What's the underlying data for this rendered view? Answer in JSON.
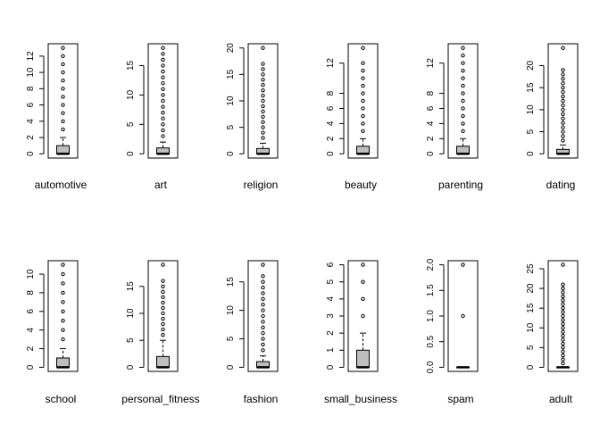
{
  "chart_data": [
    {
      "type": "box",
      "xlabel": "automotive",
      "ylabel": "",
      "ylim": [
        0,
        13
      ],
      "yticks": [
        0,
        2,
        4,
        6,
        8,
        10,
        12
      ],
      "box": {
        "min": 0,
        "q1": 0,
        "median": 0,
        "q3": 1,
        "whisker_high": 2
      },
      "outliers": [
        3,
        4,
        5,
        6,
        7,
        8,
        9,
        10,
        11,
        12,
        13
      ]
    },
    {
      "type": "box",
      "xlabel": "art",
      "ylabel": "",
      "ylim": [
        0,
        18
      ],
      "yticks": [
        0,
        5,
        10,
        15
      ],
      "box": {
        "min": 0,
        "q1": 0,
        "median": 0,
        "q3": 1,
        "whisker_high": 2
      },
      "outliers": [
        3,
        4,
        5,
        6,
        7,
        8,
        9,
        10,
        11,
        12,
        13,
        14,
        15,
        16,
        17,
        18
      ]
    },
    {
      "type": "box",
      "xlabel": "religion",
      "ylabel": "",
      "ylim": [
        0,
        20
      ],
      "yticks": [
        0,
        5,
        10,
        15,
        20
      ],
      "box": {
        "min": 0,
        "q1": 0,
        "median": 0,
        "q3": 1,
        "whisker_high": 2
      },
      "outliers": [
        3,
        4,
        5,
        6,
        7,
        8,
        9,
        10,
        11,
        12,
        13,
        14,
        15,
        16,
        17,
        20
      ]
    },
    {
      "type": "box",
      "xlabel": "beauty",
      "ylabel": "",
      "ylim": [
        0,
        14
      ],
      "yticks": [
        0,
        2,
        4,
        6,
        8,
        12
      ],
      "box": {
        "min": 0,
        "q1": 0,
        "median": 0,
        "q3": 1,
        "whisker_high": 2
      },
      "outliers": [
        3,
        4,
        5,
        6,
        7,
        8,
        9,
        10,
        11,
        12,
        14
      ]
    },
    {
      "type": "box",
      "xlabel": "parenting",
      "ylabel": "",
      "ylim": [
        0,
        14
      ],
      "yticks": [
        0,
        2,
        4,
        6,
        8,
        12
      ],
      "box": {
        "min": 0,
        "q1": 0,
        "median": 0,
        "q3": 1,
        "whisker_high": 2
      },
      "outliers": [
        3,
        4,
        5,
        6,
        7,
        8,
        9,
        10,
        11,
        12,
        13,
        14
      ]
    },
    {
      "type": "box",
      "xlabel": "dating",
      "ylabel": "",
      "ylim": [
        0,
        24
      ],
      "yticks": [
        0,
        5,
        10,
        15,
        20
      ],
      "box": {
        "min": 0,
        "q1": 0,
        "median": 0,
        "q3": 1,
        "whisker_high": 2
      },
      "outliers": [
        3,
        4,
        5,
        6,
        7,
        8,
        9,
        10,
        11,
        12,
        13,
        14,
        15,
        16,
        17,
        18,
        19,
        24
      ]
    },
    {
      "type": "box",
      "xlabel": "school",
      "ylabel": "",
      "ylim": [
        0,
        11
      ],
      "yticks": [
        0,
        2,
        4,
        6,
        8,
        10
      ],
      "box": {
        "min": 0,
        "q1": 0,
        "median": 0,
        "q3": 1,
        "whisker_high": 2
      },
      "outliers": [
        3,
        4,
        5,
        6,
        7,
        8,
        9,
        10,
        11
      ]
    },
    {
      "type": "box",
      "xlabel": "personal_fitness",
      "ylabel": "",
      "ylim": [
        0,
        19
      ],
      "yticks": [
        0,
        5,
        10,
        15
      ],
      "box": {
        "min": 0,
        "q1": 0,
        "median": 0,
        "q3": 2,
        "whisker_high": 5
      },
      "outliers": [
        6,
        7,
        8,
        9,
        10,
        11,
        12,
        13,
        14,
        15,
        16,
        19
      ]
    },
    {
      "type": "box",
      "xlabel": "fashion",
      "ylabel": "",
      "ylim": [
        0,
        18
      ],
      "yticks": [
        0,
        5,
        10,
        15
      ],
      "box": {
        "min": 0,
        "q1": 0,
        "median": 0,
        "q3": 1,
        "whisker_high": 2
      },
      "outliers": [
        3,
        4,
        5,
        6,
        7,
        8,
        9,
        10,
        11,
        12,
        13,
        14,
        15,
        16,
        18
      ]
    },
    {
      "type": "box",
      "xlabel": "small_business",
      "ylabel": "",
      "ylim": [
        0,
        6
      ],
      "yticks": [
        0,
        1,
        2,
        3,
        4,
        5,
        6
      ],
      "box": {
        "min": 0,
        "q1": 0,
        "median": 0,
        "q3": 1,
        "whisker_high": 2
      },
      "outliers": [
        3,
        4,
        5,
        6
      ]
    },
    {
      "type": "box",
      "xlabel": "spam",
      "ylabel": "",
      "ylim": [
        0,
        2
      ],
      "yticks": [
        0.0,
        0.5,
        1.0,
        1.5,
        2.0
      ],
      "ytick_labels": [
        "0.0",
        "0.5",
        "1.0",
        "1.5",
        "2.0"
      ],
      "box": {
        "min": 0,
        "q1": 0,
        "median": 0,
        "q3": 0,
        "whisker_high": 0
      },
      "outliers": [
        1,
        2
      ]
    },
    {
      "type": "box",
      "xlabel": "adult",
      "ylabel": "",
      "ylim": [
        0,
        26
      ],
      "yticks": [
        0,
        5,
        10,
        15,
        20,
        25
      ],
      "box": {
        "min": 0,
        "q1": 0,
        "median": 0,
        "q3": 0,
        "whisker_high": 0
      },
      "outliers": [
        1,
        2,
        3,
        4,
        5,
        6,
        7,
        8,
        9,
        10,
        11,
        12,
        13,
        14,
        15,
        16,
        17,
        18,
        19,
        20,
        21,
        26
      ]
    }
  ],
  "colors": {
    "box_fill": "#bebebe",
    "stroke": "#000000",
    "background": "#ffffff"
  }
}
